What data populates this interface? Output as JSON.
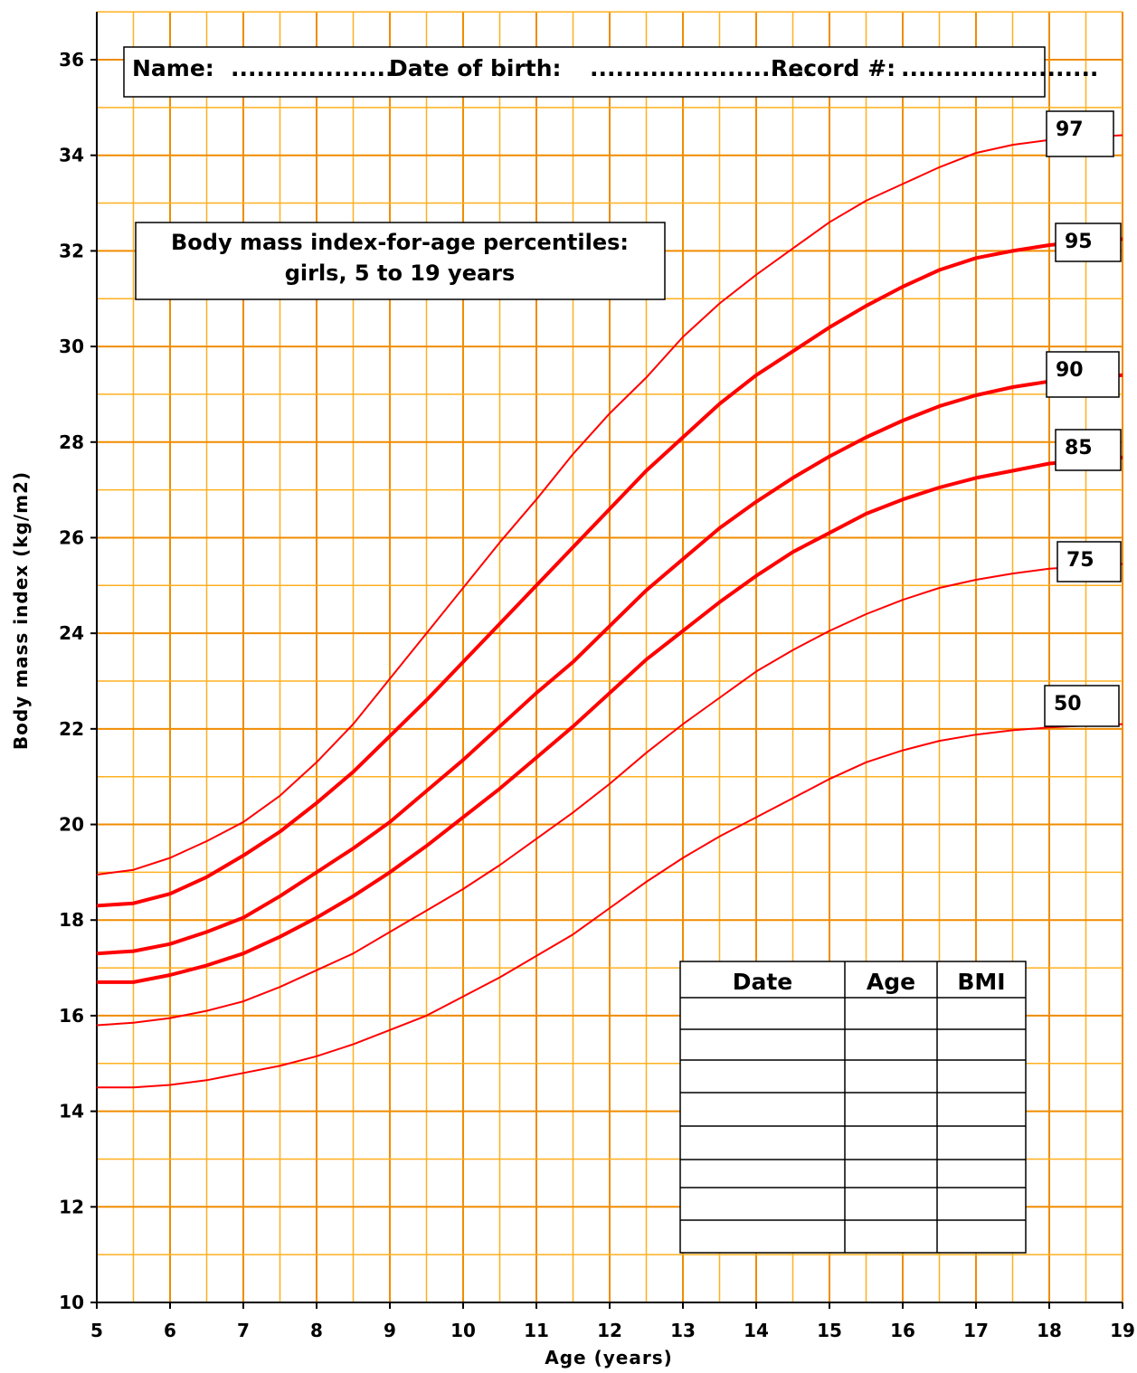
{
  "header": {
    "name_label": "Name:",
    "name_blank": "...................",
    "dob_label": "Date of birth:",
    "dob_blank": "..........................",
    "record_label": "Record #:",
    "record_blank": "......................."
  },
  "record_table": {
    "headers": [
      "Date",
      "Age",
      "BMI"
    ],
    "empty_rows": 8
  },
  "colors": {
    "grid_major": "#F08C00",
    "grid_minor": "#FFB020",
    "curve": "#FF0000"
  },
  "chart_data": {
    "type": "line",
    "title_line1": "Body mass index-for-age percentiles:",
    "title_line2": "girls, 5 to 19 years",
    "xlabel": "Age (years)",
    "ylabel": "Body mass index (kg/m2)",
    "xlim": [
      5,
      19
    ],
    "ylim": [
      10,
      37
    ],
    "x_ticks": [
      5,
      6,
      7,
      8,
      9,
      10,
      11,
      12,
      13,
      14,
      15,
      16,
      17,
      18,
      19
    ],
    "y_ticks": [
      10,
      12,
      14,
      16,
      18,
      20,
      22,
      24,
      26,
      28,
      30,
      32,
      34,
      36
    ],
    "grid": true,
    "x": [
      5,
      5.5,
      6,
      6.5,
      7,
      7.5,
      8,
      8.5,
      9,
      9.5,
      10,
      10.5,
      11,
      11.5,
      12,
      12.5,
      13,
      13.5,
      14,
      14.5,
      15,
      15.5,
      16,
      16.5,
      17,
      17.5,
      18,
      18.5,
      19
    ],
    "series": [
      {
        "name": "97",
        "values": [
          18.95,
          19.05,
          19.3,
          19.65,
          20.05,
          20.6,
          21.3,
          22.1,
          23.05,
          24.0,
          24.95,
          25.9,
          26.8,
          27.75,
          28.6,
          29.35,
          30.2,
          30.9,
          31.5,
          32.05,
          32.6,
          33.05,
          33.4,
          33.75,
          34.05,
          34.22,
          34.32,
          34.38,
          34.42
        ]
      },
      {
        "name": "95",
        "values": [
          18.3,
          18.35,
          18.55,
          18.9,
          19.35,
          19.85,
          20.45,
          21.1,
          21.85,
          22.6,
          23.4,
          24.2,
          25.0,
          25.8,
          26.6,
          27.4,
          28.1,
          28.8,
          29.4,
          29.9,
          30.4,
          30.85,
          31.25,
          31.6,
          31.85,
          32.0,
          32.12,
          32.2,
          32.25
        ]
      },
      {
        "name": "90",
        "values": [
          17.3,
          17.35,
          17.5,
          17.75,
          18.05,
          18.5,
          19.0,
          19.5,
          20.05,
          20.7,
          21.35,
          22.05,
          22.75,
          23.4,
          24.15,
          24.9,
          25.55,
          26.2,
          26.75,
          27.25,
          27.7,
          28.1,
          28.45,
          28.75,
          28.98,
          29.15,
          29.27,
          29.35,
          29.4
        ]
      },
      {
        "name": "85",
        "values": [
          16.7,
          16.7,
          16.85,
          17.05,
          17.3,
          17.65,
          18.05,
          18.5,
          19.0,
          19.55,
          20.15,
          20.75,
          21.4,
          22.05,
          22.75,
          23.45,
          24.05,
          24.65,
          25.2,
          25.7,
          26.1,
          26.5,
          26.8,
          27.05,
          27.25,
          27.4,
          27.55,
          27.62,
          27.68
        ]
      },
      {
        "name": "75",
        "values": [
          15.8,
          15.85,
          15.95,
          16.1,
          16.3,
          16.6,
          16.95,
          17.3,
          17.75,
          18.2,
          18.65,
          19.15,
          19.7,
          20.25,
          20.85,
          21.5,
          22.1,
          22.65,
          23.2,
          23.65,
          24.05,
          24.4,
          24.7,
          24.95,
          25.12,
          25.25,
          25.35,
          25.4,
          25.45
        ]
      },
      {
        "name": "50",
        "values": [
          14.5,
          14.5,
          14.55,
          14.65,
          14.8,
          14.95,
          15.15,
          15.4,
          15.7,
          16.0,
          16.4,
          16.8,
          17.25,
          17.7,
          18.25,
          18.8,
          19.3,
          19.75,
          20.15,
          20.55,
          20.95,
          21.3,
          21.55,
          21.75,
          21.88,
          21.97,
          22.03,
          22.07,
          22.1
        ]
      }
    ]
  }
}
